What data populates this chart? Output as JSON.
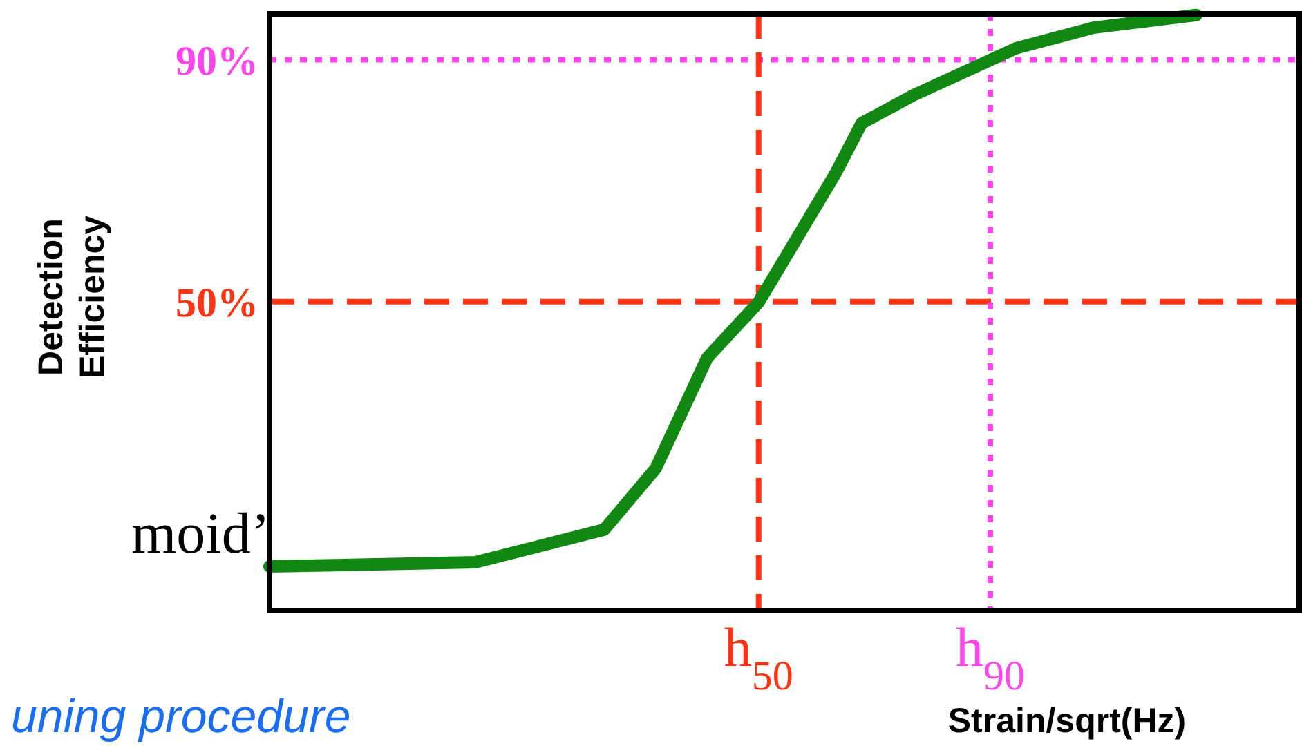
{
  "chart_data": {
    "type": "line",
    "xlabel": "Strain/sqrt(Hz)",
    "ylabel": "Detection Efficiency",
    "categories": [
      null,
      null,
      null,
      null,
      null,
      null,
      null,
      null,
      null,
      null,
      null,
      null,
      null,
      null,
      null,
      null,
      null,
      null,
      null,
      "h$_{50}$",
      null,
      null,
      null,
      null,
      null,
      null,
      null,
      null,
      "h$_{90}$",
      null,
      null,
      null,
      null,
      null,
      null,
      null,
      null,
      null,
      null,
      null,
      null
    ],
    "series": [
      {
        "color": "#118811",
        "values": [
          6.2,
          null,
          null,
          null,
          null,
          null,
          null,
          null,
          6.9,
          null,
          null,
          null,
          null,
          12.3,
          null,
          22.4,
          null,
          40.7,
          null,
          49.9,
          null,
          null,
          71.3,
          79.5,
          null,
          84.1,
          null,
          null,
          null,
          91.9,
          null,
          null,
          95.3,
          null,
          null,
          null,
          97.4,
          null,
          null,
          null,
          null
        ]
      }
    ],
    "ylim": [
      -1.1,
      97.6
    ],
    "yticks": [
      {
        "value": 50,
        "label": "50%"
      },
      {
        "value": 90,
        "label": "90%"
      }
    ],
    "ref_lines": [
      {
        "axis": "y",
        "value": 50,
        "color": "#ff3311",
        "line_style": "dashed"
      },
      {
        "axis": "y",
        "value": 90,
        "color": "#ff44ee",
        "line_style": "dotted"
      },
      {
        "axis": "x",
        "value": "h$_{50}$",
        "color": "#ff3311",
        "line_style": "dashed"
      },
      {
        "axis": "x",
        "value": "h$_{90}$",
        "color": "#ff44ee",
        "line_style": "dotted"
      }
    ],
    "annotations": [
      "moid’",
      "uning procedure"
    ],
    "marker": "none"
  }
}
